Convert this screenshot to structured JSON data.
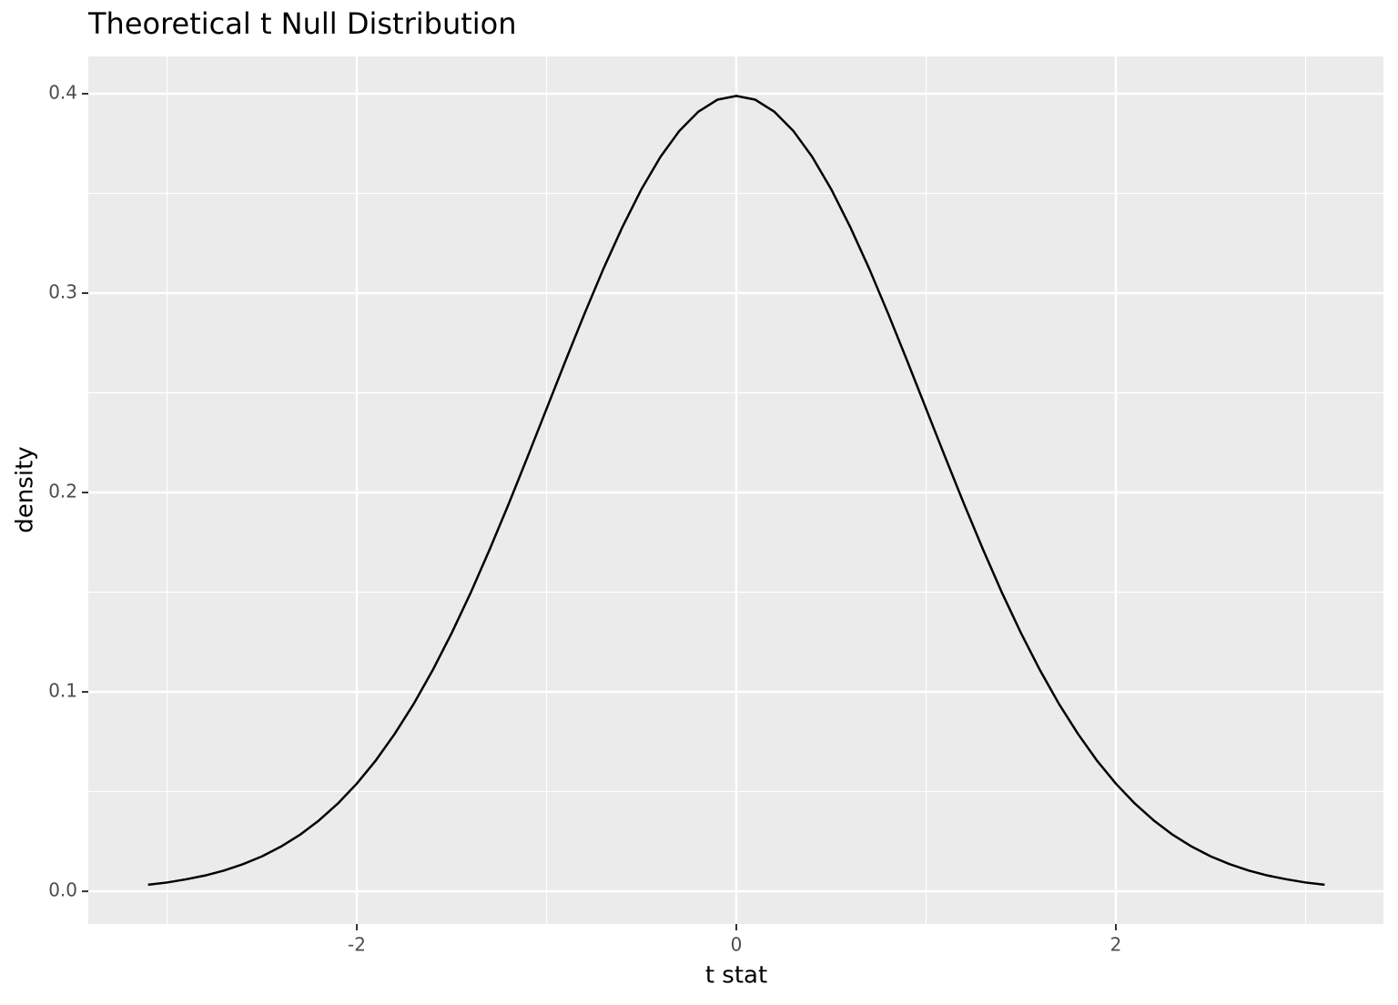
{
  "chart_data": {
    "type": "line",
    "title": "Theoretical t Null Distribution",
    "x_label": "t stat",
    "y_label": "density",
    "x": [
      -3.1,
      -3.0,
      -2.9,
      -2.8,
      -2.7,
      -2.6,
      -2.5,
      -2.4,
      -2.3,
      -2.2,
      -2.1,
      -2.0,
      -1.9,
      -1.8,
      -1.7,
      -1.6,
      -1.5,
      -1.4,
      -1.3,
      -1.2,
      -1.1,
      -1.0,
      -0.9,
      -0.8,
      -0.7,
      -0.6,
      -0.5,
      -0.4,
      -0.3,
      -0.2,
      -0.1,
      0,
      0.1,
      0.2,
      0.3,
      0.4,
      0.5,
      0.6,
      0.7,
      0.8,
      0.9,
      1.0,
      1.1,
      1.2,
      1.3,
      1.4,
      1.5,
      1.6,
      1.7,
      1.8,
      1.9,
      2.0,
      2.1,
      2.2,
      2.3,
      2.4,
      2.5,
      2.6,
      2.7,
      2.8,
      2.9,
      3.0,
      3.1
    ],
    "values": [
      0.0033,
      0.0044,
      0.006,
      0.0079,
      0.0104,
      0.0136,
      0.0175,
      0.0224,
      0.0283,
      0.0355,
      0.044,
      0.054,
      0.0656,
      0.079,
      0.094,
      0.1109,
      0.1295,
      0.1497,
      0.1714,
      0.1942,
      0.2179,
      0.242,
      0.2661,
      0.2897,
      0.3123,
      0.3332,
      0.3521,
      0.3683,
      0.3814,
      0.391,
      0.397,
      0.3989,
      0.397,
      0.391,
      0.3814,
      0.3683,
      0.3521,
      0.3332,
      0.3123,
      0.2897,
      0.2661,
      0.242,
      0.2179,
      0.1942,
      0.1714,
      0.1497,
      0.1295,
      0.1109,
      0.094,
      0.079,
      0.0656,
      0.054,
      0.044,
      0.0355,
      0.0283,
      0.0224,
      0.0175,
      0.0136,
      0.0104,
      0.0079,
      0.006,
      0.0044,
      0.0033
    ],
    "color": "#000000",
    "xlim": [
      -3.415,
      3.41
    ],
    "ylim": [
      -0.0164,
      0.4187
    ],
    "xticks": [
      -2,
      0,
      2
    ],
    "yticks": [
      {
        "value": 0,
        "label": "0.0"
      },
      0.1,
      0.2,
      0.3,
      0.4
    ],
    "x_minor_ticks": [
      -3,
      -1,
      1,
      3
    ],
    "y_minor_ticks": [
      0.05,
      0.15,
      0.25,
      0.35
    ],
    "grid": true
  }
}
